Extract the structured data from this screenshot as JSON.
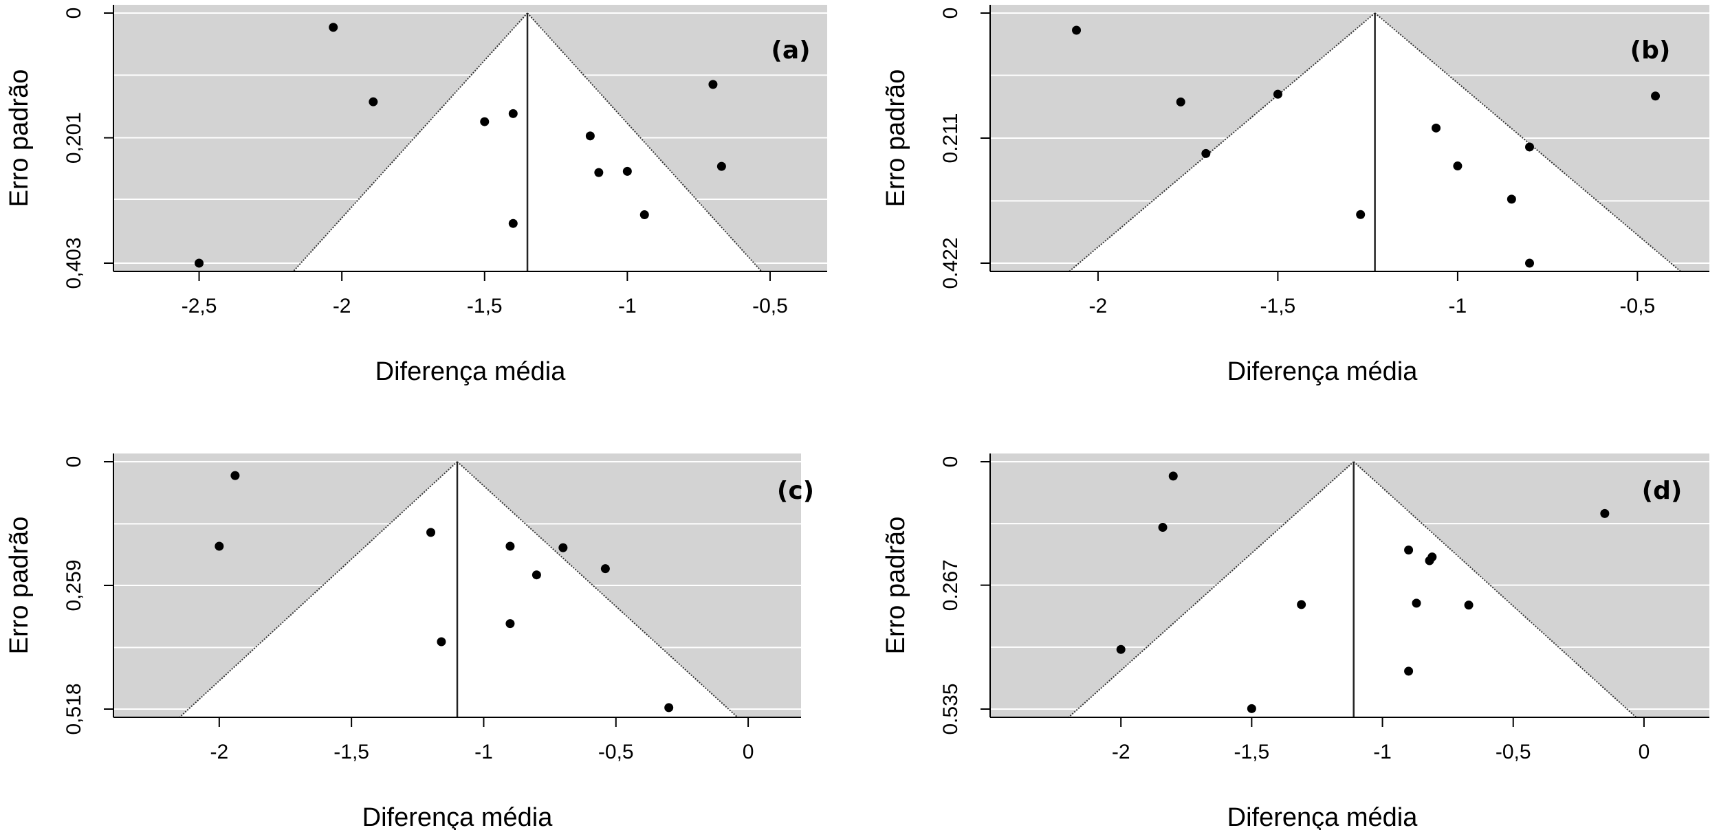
{
  "chart_data": [
    {
      "type": "scatter",
      "panel_label": "(a)",
      "xlabel": "Diferença média",
      "ylabel": "Erro padrão",
      "xlim": [
        -2.8,
        -0.3
      ],
      "ylim": [
        0.403,
        0
      ],
      "xticks": [
        -2.5,
        -2,
        -1.5,
        -1,
        -0.5
      ],
      "xtick_labels": [
        "-2,5",
        "-2",
        "-1,5",
        "-1",
        "-0,5"
      ],
      "yticks": [
        0,
        0.201,
        0.403
      ],
      "ytick_labels": [
        "0",
        "0,201",
        "0,403"
      ],
      "grid_lines": [
        0,
        0.1,
        0.201,
        0.3,
        0.403
      ],
      "funnel_apex": -1.35,
      "funnel_base": [
        -2.17,
        -0.53
      ],
      "x": [
        -2.03,
        -1.89,
        -1.5,
        -1.4,
        -1.4,
        -2.5,
        -1.13,
        -1.1,
        -1.0,
        -0.94,
        -0.7,
        -0.67
      ],
      "y": [
        0.023,
        0.143,
        0.175,
        0.162,
        0.339,
        0.403,
        0.198,
        0.257,
        0.255,
        0.325,
        0.115,
        0.247
      ]
    },
    {
      "type": "scatter",
      "panel_label": "(b)",
      "xlabel": "Diferença média",
      "ylabel": "Erro padrão",
      "xlim": [
        -2.3,
        -0.3
      ],
      "ylim": [
        0.422,
        0
      ],
      "xticks": [
        -2,
        -1.5,
        -1,
        -0.5
      ],
      "xtick_labels": [
        "-2",
        "-1,5",
        "-1",
        "-0,5"
      ],
      "yticks": [
        0,
        0.211,
        0.422
      ],
      "ytick_labels": [
        "0",
        "0.211",
        "0.422"
      ],
      "grid_lines": [
        0,
        0.105,
        0.211,
        0.317,
        0.422
      ],
      "funnel_apex": -1.23,
      "funnel_base": [
        -2.08,
        -0.38
      ],
      "x": [
        -2.06,
        -1.77,
        -1.5,
        -1.7,
        -1.27,
        -1.06,
        -1.0,
        -0.8,
        -0.85,
        -0.8,
        -0.45
      ],
      "y": [
        0.029,
        0.15,
        0.137,
        0.237,
        0.34,
        0.194,
        0.258,
        0.226,
        0.314,
        0.422,
        0.14
      ]
    },
    {
      "type": "scatter",
      "panel_label": "(c)",
      "xlabel": "Diferença média",
      "ylabel": "Erro padrão",
      "xlim": [
        -2.4,
        0.2
      ],
      "ylim": [
        0.518,
        0
      ],
      "xticks": [
        -2,
        -1.5,
        -1,
        -0.5,
        0
      ],
      "xtick_labels": [
        "-2",
        "-1,5",
        "-1",
        "-0,5",
        "0"
      ],
      "yticks": [
        0,
        0.259,
        0.518
      ],
      "ytick_labels": [
        "0",
        "0,259",
        "0,518"
      ],
      "grid_lines": [
        0,
        0.13,
        0.259,
        0.389,
        0.518
      ],
      "funnel_apex": -1.1,
      "funnel_base": [
        -2.15,
        -0.04
      ],
      "x": [
        -1.94,
        -2.0,
        -1.2,
        -1.16,
        -0.9,
        -0.9,
        -0.8,
        -0.7,
        -0.54,
        -0.3
      ],
      "y": [
        0.029,
        0.177,
        0.148,
        0.377,
        0.177,
        0.339,
        0.237,
        0.18,
        0.224,
        0.515
      ]
    },
    {
      "type": "scatter",
      "panel_label": "(d)",
      "xlabel": "Diferença média",
      "ylabel": "Erro padrão",
      "xlim": [
        -2.5,
        0.25
      ],
      "ylim": [
        0.535,
        0
      ],
      "xticks": [
        -2,
        -1.5,
        -1,
        -0.5,
        0
      ],
      "xtick_labels": [
        "-2",
        "-1,5",
        "-1",
        "-0,5",
        "0"
      ],
      "yticks": [
        0,
        0.267,
        0.535
      ],
      "ytick_labels": [
        "0",
        "0.267",
        "0.535"
      ],
      "grid_lines": [
        0,
        0.134,
        0.267,
        0.401,
        0.535
      ],
      "funnel_apex": -1.11,
      "funnel_base": [
        -2.2,
        -0.03
      ],
      "x": [
        -1.8,
        -1.84,
        -2.0,
        -1.5,
        -1.31,
        -0.9,
        -0.82,
        -0.81,
        -0.87,
        -0.9,
        -0.67,
        -0.15
      ],
      "y": [
        0.031,
        0.142,
        0.406,
        0.534,
        0.309,
        0.191,
        0.214,
        0.206,
        0.306,
        0.453,
        0.31,
        0.112
      ]
    }
  ]
}
